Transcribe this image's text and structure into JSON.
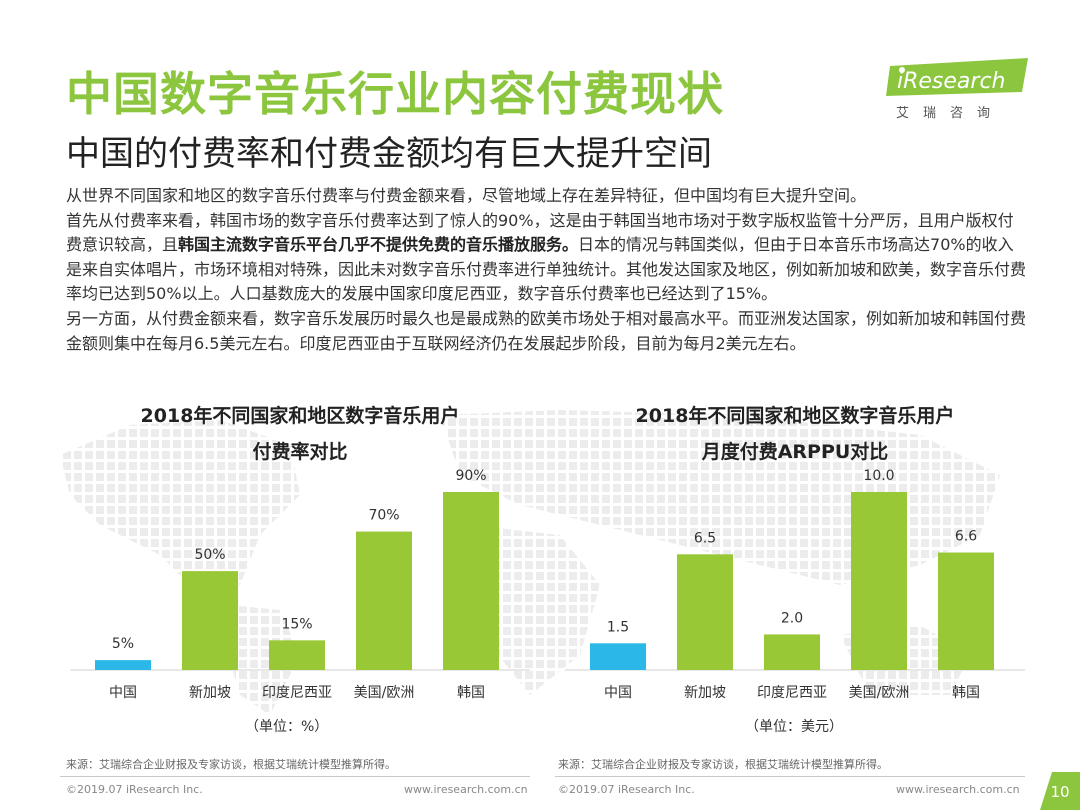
{
  "header": {
    "title": "中国数字音乐行业内容付费现状",
    "subtitle": "中国的付费率和付费金额均有巨大提升空间"
  },
  "logo": {
    "text": "iResearch",
    "sub": "艾瑞咨询",
    "color": "#8cc63f"
  },
  "body": {
    "p1": "从世界不同国家和地区的数字音乐付费率与付费金额来看，尽管地域上存在差异特征，但中国均有巨大提升空间。",
    "p2_a": "首先从付费率来看，韩国市场的数字音乐付费率达到了惊人的90%，这是由于韩国当地市场对于数字版权监管十分严厉，且用户版权付费意识较高，且",
    "p2_bold": "韩国主流数字音乐平台几乎不提供免费的音乐播放服务。",
    "p2_b": "日本的情况与韩国类似，但由于日本音乐市场高达70%的收入是来自实体唱片，市场环境相对特殊，因此未对数字音乐付费率进行单独统计。其他发达国家及地区，例如新加坡和欧美，数字音乐付费率均已达到50%以上。人口基数庞大的发展中国家印度尼西亚，数字音乐付费率也已经达到了15%。",
    "p3": "另一方面，从付费金额来看，数字音乐发展历时最久也是最成熟的欧美市场处于相对最高水平。而亚洲发达国家，例如新加坡和韩国付费金额则集中在每月6.5美元左右。印度尼西亚由于互联网经济仍在发展起步阶段，目前为每月2美元左右。"
  },
  "colors": {
    "highlight": "#2bb8e8",
    "bar": "#99c836",
    "title": "#8cc63f"
  },
  "chart_data": [
    {
      "type": "bar",
      "title_line1": "2018年不同国家和地区数字音乐用户",
      "title_line2": "付费率对比",
      "unit": "（单位：%）",
      "categories": [
        "中国",
        "新加坡",
        "印度尼西亚",
        "美国/欧洲",
        "韩国"
      ],
      "values": [
        5,
        50,
        15,
        70,
        90
      ],
      "labels": [
        "5%",
        "50%",
        "15%",
        "70%",
        "90%"
      ],
      "highlight_index": 0,
      "ylim": [
        0,
        90
      ]
    },
    {
      "type": "bar",
      "title_line1": "2018年不同国家和地区数字音乐用户",
      "title_line2": "月度付费ARPPU对比",
      "unit": "（单位：美元）",
      "categories": [
        "中国",
        "新加坡",
        "印度尼西亚",
        "美国/欧洲",
        "韩国"
      ],
      "values": [
        1.5,
        6.5,
        2.0,
        10.0,
        6.6
      ],
      "labels": [
        "1.5",
        "6.5",
        "2.0",
        "10.0",
        "6.6"
      ],
      "highlight_index": 0,
      "ylim": [
        0,
        10
      ]
    }
  ],
  "sources": {
    "left": "来源：艾瑞综合企业财报及专家访谈，根据艾瑞统计模型推算所得。",
    "right": "来源：艾瑞综合企业财报及专家访谈，根据艾瑞统计模型推算所得。"
  },
  "footer": {
    "copyright_left": "©2019.07 iResearch Inc.",
    "url_left": "www.iresearch.com.cn",
    "copyright_right": "©2019.07 iResearch Inc.",
    "url_right": "www.iresearch.com.cn",
    "page_number": "10"
  }
}
